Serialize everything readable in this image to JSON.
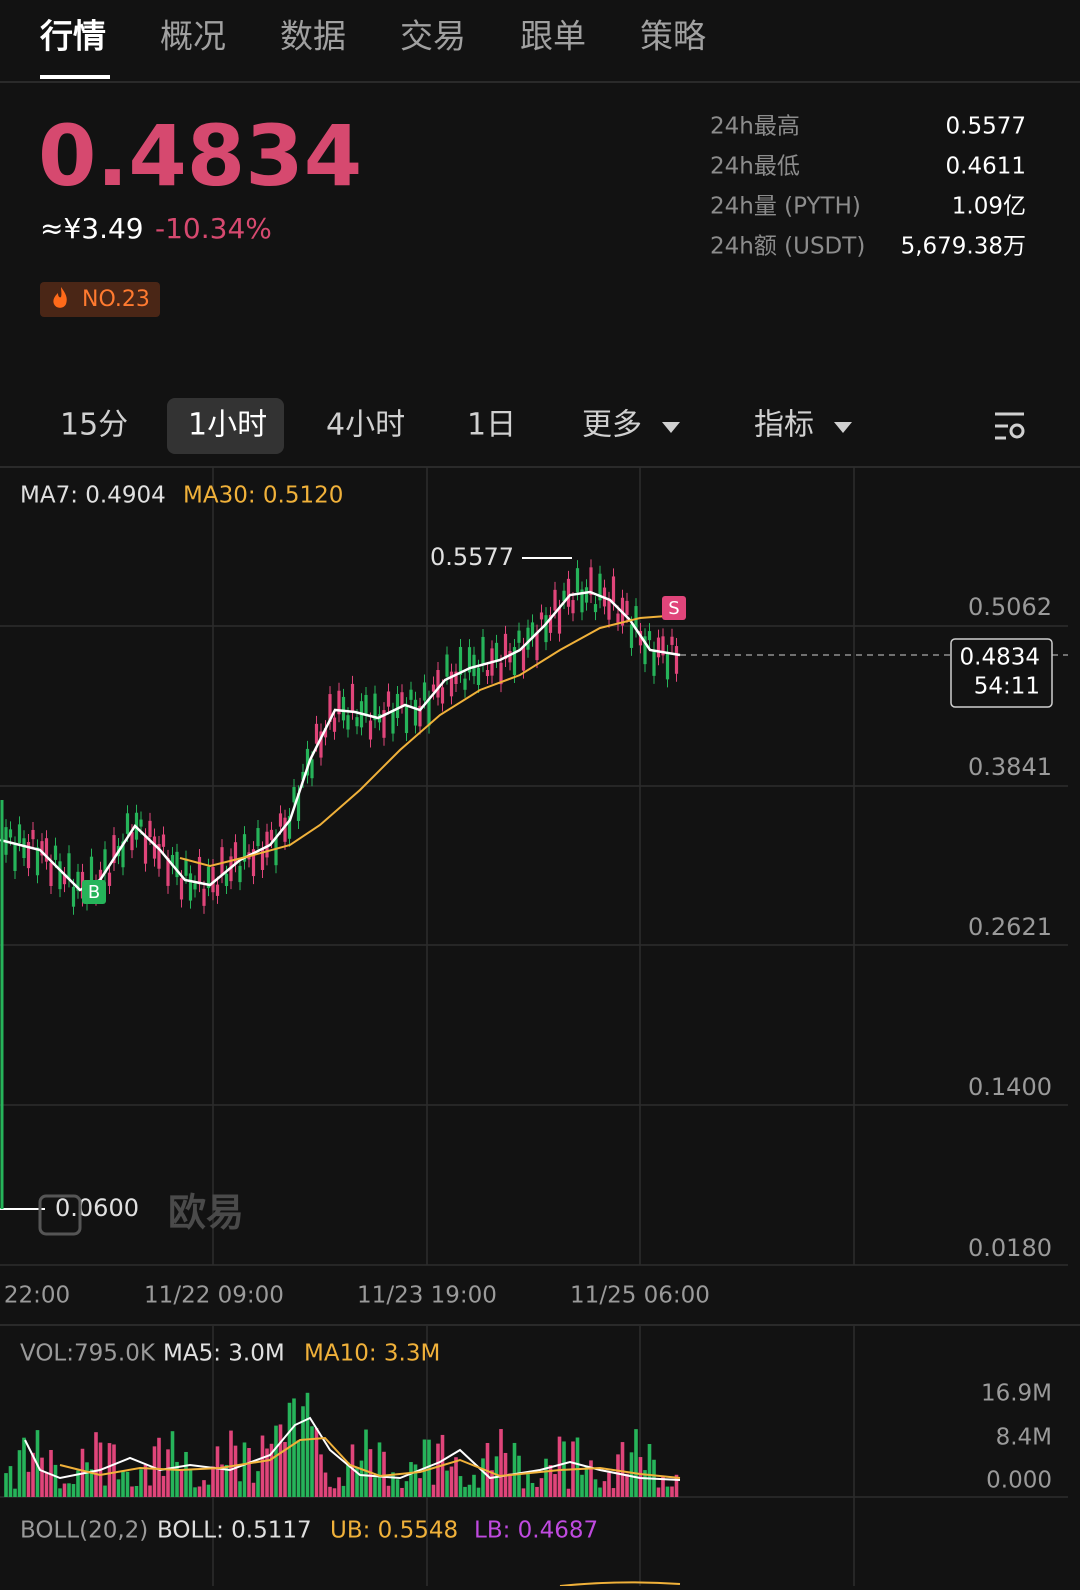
{
  "tabs": [
    "行情",
    "概况",
    "数据",
    "交易",
    "跟单",
    "策略"
  ],
  "price": {
    "last": "0.4834",
    "cny": "≈¥3.49",
    "change": "-10.34%",
    "rank": "NO.23"
  },
  "stats": [
    {
      "label": "24h最高",
      "value": "0.5577"
    },
    {
      "label": "24h最低",
      "value": "0.4611"
    },
    {
      "label": "24h量 (PYTH)",
      "value": "1.09亿"
    },
    {
      "label": "24h额 (USDT)",
      "value": "5,679.38万"
    }
  ],
  "intervals": [
    "15分",
    "1小时",
    "4小时",
    "1日",
    "更多",
    "指标"
  ],
  "main_chart": {
    "ma7": "MA7: 0.4904",
    "ma30": "MA30: 0.5120",
    "high_label": "0.5577",
    "low_label": "0.0600",
    "price_ticks": [
      "0.5062",
      "0.3841",
      "0.2621",
      "0.1400",
      "0.0180"
    ],
    "current_price": "0.4834",
    "countdown": "54:11",
    "buy_marker": "B",
    "sell_marker": "S",
    "time_ticks": [
      "22:00",
      "11/22 09:00",
      "11/23 19:00",
      "11/25 06:00"
    ],
    "watermark": "欧易"
  },
  "volume_chart": {
    "vol": "VOL:795.0K",
    "ma5": "MA5: 3.0M",
    "ma10": "MA10: 3.3M",
    "ticks": [
      "16.9M",
      "8.4M",
      "0.000"
    ]
  },
  "boll": {
    "label": "BOLL(20,2)",
    "boll": "BOLL: 0.5117",
    "ub": "UB: 0.5548",
    "lb": "LB: 0.4687"
  }
}
